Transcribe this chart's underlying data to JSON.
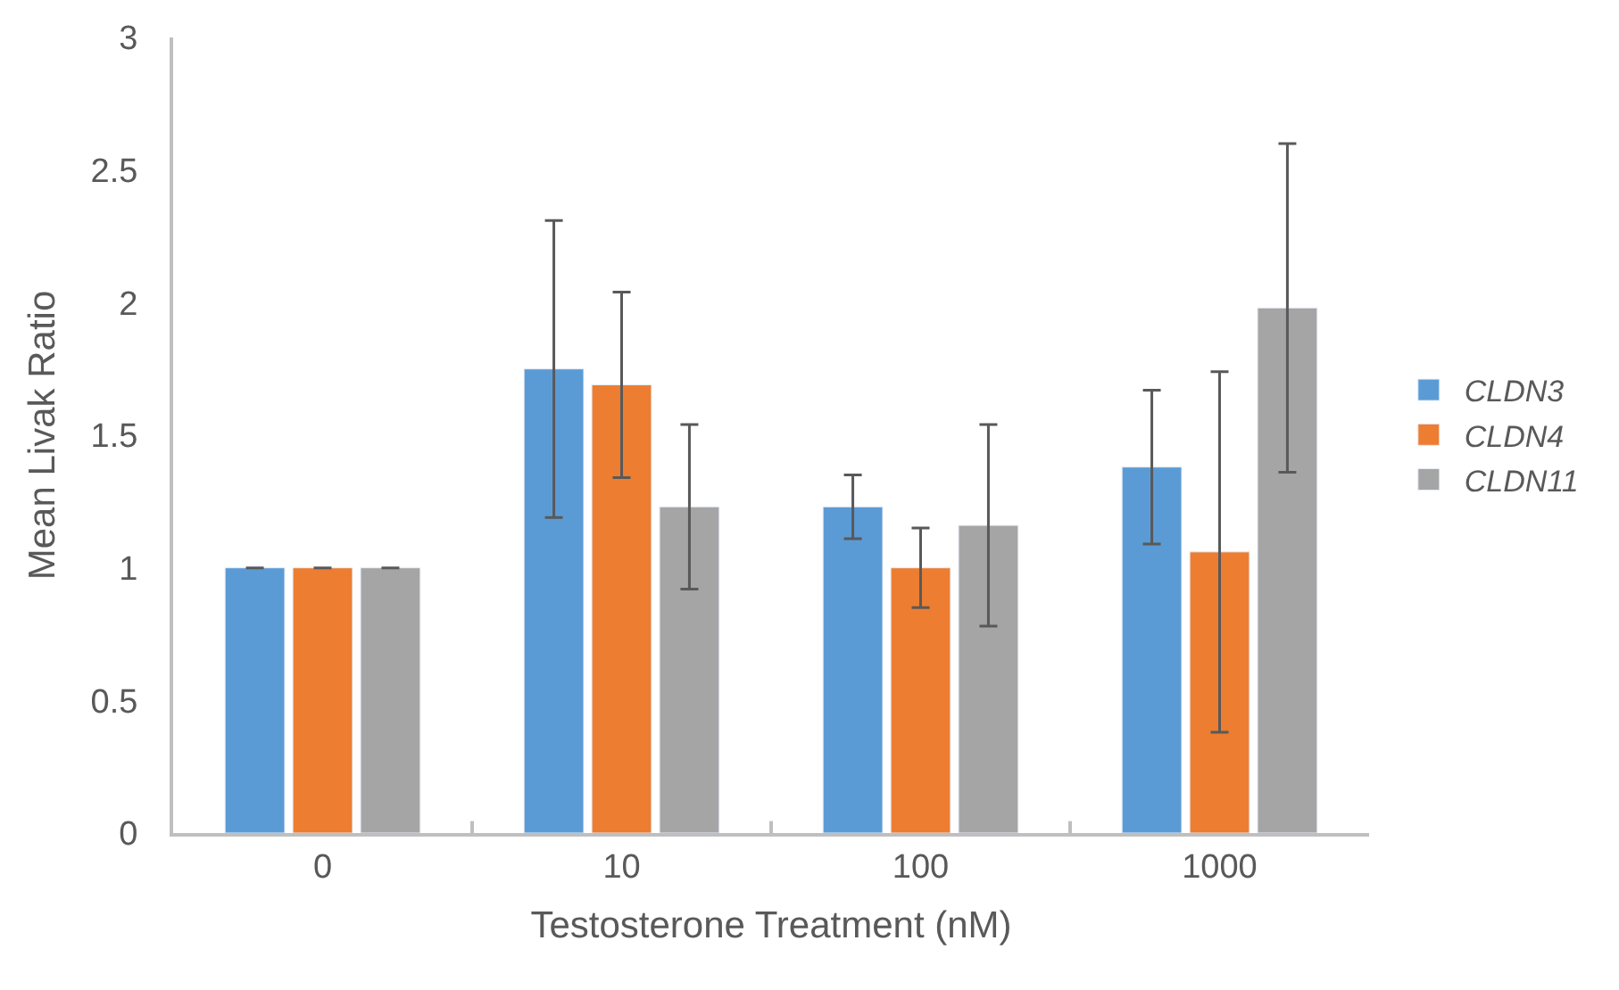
{
  "chart_data": {
    "type": "bar",
    "xlabel": "Testosterone Treatment (nM)",
    "ylabel": "Mean Livak Ratio",
    "categories": [
      "0",
      "10",
      "100",
      "1000"
    ],
    "series": [
      {
        "name": "CLDN3",
        "color": "#5b9bd5",
        "values": [
          1.0,
          1.75,
          1.23,
          1.38
        ],
        "errors": [
          0,
          0.56,
          0.12,
          0.29
        ]
      },
      {
        "name": "CLDN4",
        "color": "#ed7d31",
        "values": [
          1.0,
          1.69,
          1.0,
          1.06
        ],
        "errors": [
          0,
          0.35,
          0.15,
          0.68
        ]
      },
      {
        "name": "CLDN11",
        "color": "#a5a5a5",
        "values": [
          1.0,
          1.23,
          1.16,
          1.98
        ],
        "errors": [
          0,
          0.31,
          0.38,
          0.62
        ]
      }
    ],
    "ylim": [
      0,
      3
    ],
    "yticks": [
      0,
      0.5,
      1,
      1.5,
      2,
      2.5,
      3
    ],
    "legend": "right"
  }
}
